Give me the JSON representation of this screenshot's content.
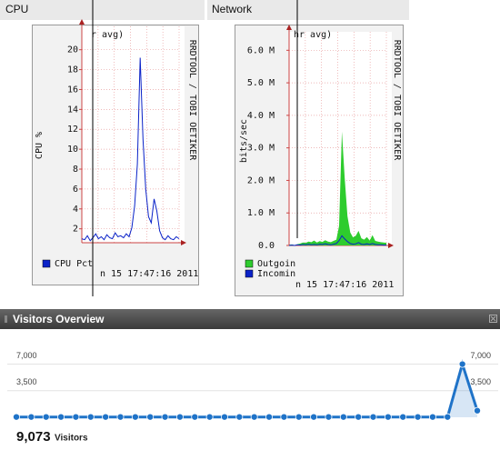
{
  "chart_data": [
    {
      "type": "line",
      "panel_title": "CPU",
      "title": "r avg)",
      "y_label": "CPU %",
      "side_text": "RRDTOOL / TOBI OETIKER",
      "footnote": "n 15 17:47:16 2011",
      "categories": [
        null,
        null,
        null,
        null,
        null,
        null,
        null,
        null,
        null,
        null,
        null,
        null,
        null,
        null,
        null,
        null,
        null,
        null,
        null,
        null,
        null,
        null,
        null,
        null,
        null,
        null,
        null,
        null,
        null,
        null,
        null,
        null,
        null,
        null,
        null,
        null
      ],
      "series": [
        {
          "name": "CPU Pct",
          "color": "#0a22c8",
          "values": [
            1.0,
            0.9,
            1.3,
            0.8,
            1.1,
            1.5,
            1.0,
            1.2,
            0.9,
            1.4,
            1.1,
            1.0,
            1.6,
            1.2,
            1.3,
            1.1,
            1.5,
            1.2,
            2.1,
            4.3,
            8.5,
            19.2,
            11.0,
            6.0,
            3.2,
            2.6,
            5.0,
            3.8,
            1.8,
            1.1,
            0.9,
            1.3,
            1.0,
            0.9,
            1.2,
            1.0
          ]
        }
      ],
      "ylim": [
        0.6,
        21.8
      ],
      "yticks": [
        2,
        4,
        6,
        8,
        10,
        12,
        14,
        16,
        18,
        20
      ],
      "grid": true
    },
    {
      "type": "area",
      "panel_title": "Network",
      "title": "hr avg)",
      "y_label": "bits/sec",
      "side_text": "RRDTOOL / TOBI OETIKER",
      "footnote": "n 15 17:47:16 2011",
      "categories": [
        null,
        null,
        null,
        null,
        null,
        null,
        null,
        null,
        null,
        null,
        null,
        null,
        null,
        null,
        null,
        null,
        null,
        null,
        null,
        null,
        null,
        null,
        null,
        null,
        null,
        null,
        null,
        null,
        null,
        null,
        null,
        null,
        null,
        null,
        null,
        null
      ],
      "series": [
        {
          "name": "Outgoin",
          "color": "#2ecc2e",
          "values": [
            20000,
            30000,
            10000,
            40000,
            60000,
            90000,
            80000,
            120000,
            100000,
            150000,
            90000,
            130000,
            110000,
            160000,
            120000,
            100000,
            140000,
            180000,
            600000,
            3500000,
            2100000,
            900000,
            400000,
            250000,
            300000,
            450000,
            220000,
            180000,
            260000,
            150000,
            320000,
            140000,
            120000,
            100000,
            90000,
            80000
          ]
        },
        {
          "name": "Incomin",
          "color": "#0a22c8",
          "values": [
            0,
            10000,
            0,
            20000,
            10000,
            30000,
            20000,
            40000,
            20000,
            30000,
            20000,
            40000,
            30000,
            50000,
            30000,
            20000,
            40000,
            60000,
            150000,
            300000,
            200000,
            120000,
            60000,
            40000,
            50000,
            90000,
            40000,
            30000,
            50000,
            30000,
            60000,
            30000,
            20000,
            20000,
            10000,
            10000
          ]
        }
      ],
      "ylim": [
        0,
        6400000
      ],
      "yticks": [
        {
          "value": 0,
          "label": "0.0"
        },
        {
          "value": 1000000,
          "label": "1.0 M"
        },
        {
          "value": 2000000,
          "label": "2.0 M"
        },
        {
          "value": 3000000,
          "label": "3.0 M"
        },
        {
          "value": 4000000,
          "label": "4.0 M"
        },
        {
          "value": 5000000,
          "label": "5.0 M"
        },
        {
          "value": 6000000,
          "label": "6.0 M"
        }
      ],
      "grid": true
    },
    {
      "type": "dotline",
      "panel_title": "Visitors Overview",
      "summary_value": "9,073",
      "summary_label": "Visitors",
      "categories": [
        null,
        null,
        null,
        null,
        null,
        null,
        null,
        null,
        null,
        null,
        null,
        null,
        null,
        null,
        null,
        null,
        null,
        null,
        null,
        null,
        null,
        null,
        null,
        null,
        null,
        null,
        null,
        null,
        null,
        null,
        null,
        null
      ],
      "series": [
        {
          "name": "Visitors",
          "color": "#1f73c8",
          "values": [
            40,
            40,
            40,
            40,
            40,
            40,
            40,
            40,
            40,
            40,
            40,
            40,
            40,
            40,
            40,
            40,
            40,
            40,
            40,
            40,
            40,
            40,
            40,
            40,
            40,
            40,
            40,
            40,
            40,
            40,
            7000,
            873
          ]
        }
      ],
      "ylim": [
        0,
        8500
      ],
      "yticks": [
        {
          "value": 3500,
          "label": "3,500"
        },
        {
          "value": 7000,
          "label": "7,000"
        }
      ],
      "grid": true
    }
  ]
}
